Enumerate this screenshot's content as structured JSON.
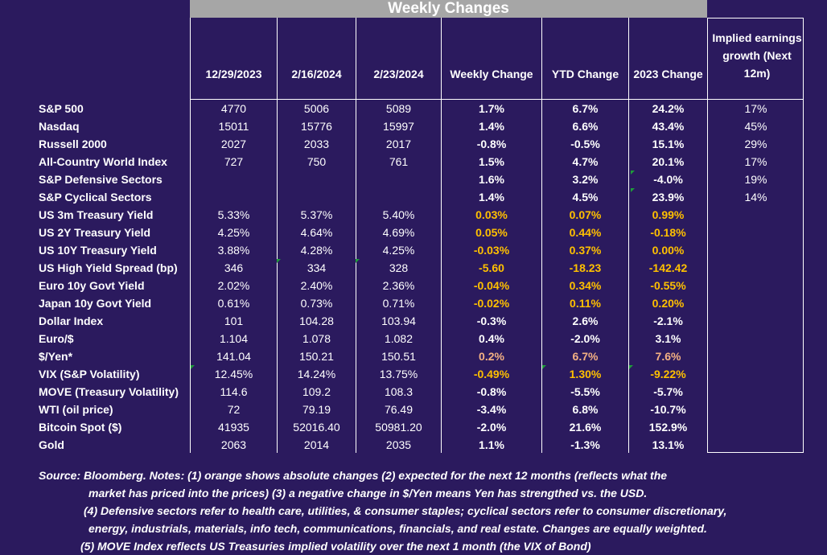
{
  "title": "Weekly Changes",
  "headers": [
    "12/29/2023",
    "2/16/2024",
    "2/23/2024",
    "Weekly Change",
    "YTD Change",
    "2023 Change"
  ],
  "implied_header": "Implied earnings growth (Next 12m)",
  "rows": [
    {
      "label": "S&P 500",
      "v": [
        "4770",
        "5006",
        "5089",
        "1.7%",
        "6.7%",
        "24.2%",
        "17%"
      ]
    },
    {
      "label": "Nasdaq",
      "v": [
        "15011",
        "15776",
        "15997",
        "1.4%",
        "6.6%",
        "43.4%",
        "45%"
      ]
    },
    {
      "label": "Russell 2000",
      "v": [
        "2027",
        "2033",
        "2017",
        "-0.8%",
        "-0.5%",
        "15.1%",
        "29%"
      ]
    },
    {
      "label": "All-Country World Index",
      "v": [
        "727",
        "750",
        "761",
        "1.5%",
        "4.7%",
        "20.1%",
        "17%"
      ]
    },
    {
      "label": "S&P Defensive Sectors",
      "v": [
        "",
        "",
        "",
        "1.6%",
        "3.2%",
        "-4.0%",
        "19%"
      ]
    },
    {
      "label": "S&P Cyclical Sectors",
      "v": [
        "",
        "",
        "",
        "1.4%",
        "4.5%",
        "23.9%",
        "14%"
      ]
    },
    {
      "label": "US 3m Treasury Yield",
      "v": [
        "5.33%",
        "5.37%",
        "5.40%",
        "0.03%",
        "0.07%",
        "0.99%",
        ""
      ]
    },
    {
      "label": "US 2Y Treasury Yield",
      "v": [
        "4.25%",
        "4.64%",
        "4.69%",
        "0.05%",
        "0.44%",
        "-0.18%",
        ""
      ]
    },
    {
      "label": "US 10Y Treasury Yield",
      "v": [
        "3.88%",
        "4.28%",
        "4.25%",
        "-0.03%",
        "0.37%",
        "0.00%",
        ""
      ]
    },
    {
      "label": "US High Yield Spread (bp)",
      "v": [
        "346",
        "334",
        "328",
        "-5.60",
        "-18.23",
        "-142.42",
        ""
      ]
    },
    {
      "label": "Euro 10y Govt Yield",
      "v": [
        "2.02%",
        "2.40%",
        "2.36%",
        "-0.04%",
        "0.34%",
        "-0.55%",
        ""
      ]
    },
    {
      "label": "Japan 10y Govt Yield",
      "v": [
        "0.61%",
        "0.73%",
        "0.71%",
        "-0.02%",
        "0.11%",
        "0.20%",
        ""
      ]
    },
    {
      "label": "Dollar Index",
      "v": [
        "101",
        "104.28",
        "103.94",
        "-0.3%",
        "2.6%",
        "-2.1%",
        ""
      ]
    },
    {
      "label": "Euro/$",
      "v": [
        "1.104",
        "1.078",
        "1.082",
        "0.4%",
        "-2.0%",
        "3.1%",
        ""
      ]
    },
    {
      "label": "$/Yen*",
      "v": [
        "141.04",
        "150.21",
        "150.51",
        "0.2%",
        "6.7%",
        "7.6%",
        ""
      ]
    },
    {
      "label": "VIX (S&P Volatility)",
      "v": [
        "12.45%",
        "14.24%",
        "13.75%",
        "-0.49%",
        "1.30%",
        "-9.22%",
        ""
      ]
    },
    {
      "label": "MOVE (Treasury Volatility)",
      "v": [
        "114.6",
        "109.2",
        "108.3",
        "-0.8%",
        "-5.5%",
        "-5.7%",
        ""
      ]
    },
    {
      "label": "WTI (oil price)",
      "v": [
        "72",
        "79.19",
        "76.49",
        "-3.4%",
        "6.8%",
        "-10.7%",
        ""
      ]
    },
    {
      "label": "Bitcoin Spot ($)",
      "v": [
        "41935",
        "52016.40",
        "50981.20",
        "-2.0%",
        "21.6%",
        "152.9%",
        ""
      ]
    },
    {
      "label": "Gold",
      "v": [
        "2063",
        "2014",
        "2035",
        "1.1%",
        "-1.3%",
        "13.1%",
        ""
      ]
    }
  ],
  "colors": {
    "background": "#2b1a5e",
    "banner": "#a6a6a6",
    "orange": "#ffc000",
    "peach": "#f4b183",
    "flag": "#1e9e3a"
  },
  "notes": [
    "Source: Bloomberg. Notes: (1) orange shows absolute changes (2) expected for the next 12 months (reflects what the",
    "market has priced into the prices) (3) a negative change in $/Yen means Yen has strengthed vs. the USD.",
    "(4) Defensive sectors refer to health care, utilities, & consumer staples; cyclical sectors refer to consumer discretionary,",
    "energy, industrials, materials, info tech, communications, financials, and real estate. Changes are equally weighted.",
    "(5) MOVE Index reflects US Treasuries implied volatility over the next 1 month (the VIX of Bond)"
  ]
}
